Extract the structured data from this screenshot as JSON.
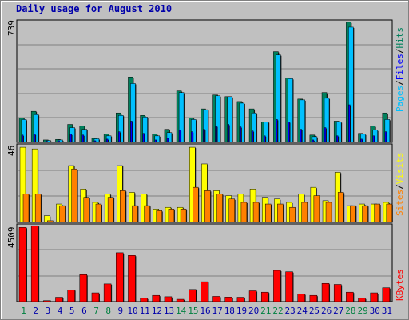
{
  "chart_title": "Daily usage for August 2010",
  "panels": {
    "top": {
      "max_label": "739",
      "legend": [
        "Pages",
        "Files",
        "Hits"
      ],
      "separator": "/"
    },
    "middle": {
      "max_label": "46",
      "legend": [
        "Sites",
        "Visits"
      ],
      "separator": "/"
    },
    "bottom": {
      "max_label": "4509",
      "legend": [
        "KBytes"
      ]
    }
  },
  "colors": {
    "background": "#c0c0c0",
    "plot_bg": "#c0c0c0",
    "grid": "#808080",
    "hits": "#00805c",
    "files": "#0000ff",
    "pages": "#00c0ff",
    "visits": "#ffff00",
    "sites": "#ff8000",
    "kbytes": "#ff0000",
    "weekend_day": "#008040",
    "weekday_day": "#0000aa",
    "title": "#0000aa"
  },
  "chart_data": [
    {
      "type": "bar",
      "title": "Daily usage for August 2010",
      "categories": [
        "1",
        "2",
        "3",
        "4",
        "5",
        "6",
        "7",
        "8",
        "9",
        "10",
        "11",
        "12",
        "13",
        "14",
        "15",
        "16",
        "17",
        "18",
        "19",
        "20",
        "21",
        "22",
        "23",
        "24",
        "25",
        "26",
        "27",
        "28",
        "29",
        "30",
        "31"
      ],
      "weekend_days": [
        1,
        7,
        8,
        14,
        15,
        21,
        22,
        28,
        29
      ],
      "ylim": [
        0,
        739
      ],
      "series": [
        {
          "name": "Hits",
          "values": [
            150,
            190,
            15,
            18,
            110,
            100,
            25,
            50,
            180,
            400,
            165,
            50,
            80,
            315,
            150,
            205,
            290,
            280,
            250,
            205,
            125,
            555,
            395,
            265,
            45,
            305,
            130,
            735,
            55,
            100,
            180
          ]
        },
        {
          "name": "Files",
          "values": [
            45,
            50,
            8,
            10,
            50,
            45,
            10,
            20,
            65,
            130,
            55,
            15,
            25,
            75,
            65,
            80,
            100,
            110,
            95,
            70,
            40,
            140,
            125,
            80,
            15,
            90,
            40,
            230,
            20,
            40,
            65
          ]
        },
        {
          "name": "Pages",
          "values": [
            140,
            170,
            12,
            15,
            90,
            80,
            22,
            40,
            165,
            360,
            155,
            40,
            60,
            305,
            140,
            200,
            285,
            280,
            240,
            180,
            125,
            535,
            390,
            260,
            35,
            270,
            125,
            705,
            50,
            75,
            140
          ]
        }
      ]
    },
    {
      "type": "bar",
      "categories": [
        "1",
        "2",
        "3",
        "4",
        "5",
        "6",
        "7",
        "8",
        "9",
        "10",
        "11",
        "12",
        "13",
        "14",
        "15",
        "16",
        "17",
        "18",
        "19",
        "20",
        "21",
        "22",
        "23",
        "24",
        "25",
        "26",
        "27",
        "28",
        "29",
        "30",
        "31"
      ],
      "ylim": [
        0,
        46
      ],
      "series": [
        {
          "name": "Visits",
          "values": [
            45,
            44,
            4,
            11,
            34,
            20,
            12,
            17,
            34,
            18,
            17,
            8,
            9,
            9,
            45,
            35,
            19,
            16,
            17,
            20,
            15,
            14,
            12,
            17,
            21,
            13,
            30,
            10,
            11,
            11,
            12
          ]
        },
        {
          "name": "Sites",
          "values": [
            17,
            17,
            1,
            10,
            32,
            15,
            11,
            15,
            19,
            10,
            10,
            7,
            8,
            8,
            21,
            19,
            17,
            14,
            12,
            12,
            11,
            11,
            9,
            12,
            16,
            12,
            18,
            10,
            10,
            11,
            11
          ]
        }
      ]
    },
    {
      "type": "bar",
      "categories": [
        "1",
        "2",
        "3",
        "4",
        "5",
        "6",
        "7",
        "8",
        "9",
        "10",
        "11",
        "12",
        "13",
        "14",
        "15",
        "16",
        "17",
        "18",
        "19",
        "20",
        "21",
        "22",
        "23",
        "24",
        "25",
        "26",
        "27",
        "28",
        "29",
        "30",
        "31"
      ],
      "ylim": [
        0,
        4509
      ],
      "series": [
        {
          "name": "KBytes",
          "values": [
            4400,
            4500,
            60,
            260,
            700,
            1600,
            520,
            1050,
            2900,
            2740,
            200,
            370,
            290,
            140,
            720,
            1180,
            310,
            270,
            260,
            640,
            560,
            1850,
            1770,
            450,
            370,
            1080,
            1020,
            560,
            200,
            520,
            820
          ]
        }
      ]
    }
  ]
}
